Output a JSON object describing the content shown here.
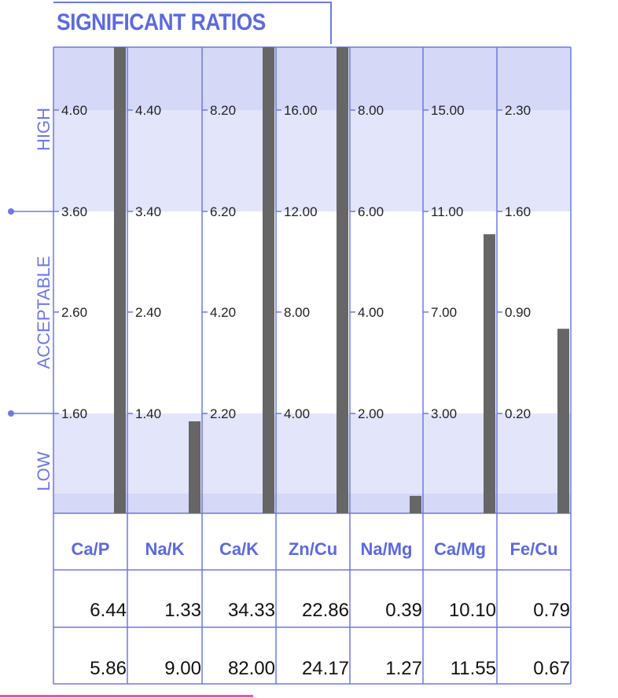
{
  "title": "SIGNIFICANT RATIOS",
  "chart_data": {
    "type": "bar",
    "zones": [
      "HIGH",
      "ACCEPTABLE",
      "LOW"
    ],
    "categories": [
      "Ca/P",
      "Na/K",
      "Ca/K",
      "Zn/Cu",
      "Na/Mg",
      "Ca/Mg",
      "Fe/Cu"
    ],
    "scales": [
      {
        "ticks": [
          "4.60",
          "3.60",
          "2.60",
          "1.60"
        ],
        "tick_values": [
          4.6,
          3.6,
          2.6,
          1.6
        ]
      },
      {
        "ticks": [
          "4.40",
          "3.40",
          "2.40",
          "1.40"
        ],
        "tick_values": [
          4.4,
          3.4,
          2.4,
          1.4
        ]
      },
      {
        "ticks": [
          "8.20",
          "6.20",
          "4.20",
          "2.20"
        ],
        "tick_values": [
          8.2,
          6.2,
          4.2,
          2.2
        ]
      },
      {
        "ticks": [
          "16.00",
          "12.00",
          "8.00",
          "4.00"
        ],
        "tick_values": [
          16,
          12,
          8,
          4
        ]
      },
      {
        "ticks": [
          "8.00",
          "6.00",
          "4.00",
          "2.00"
        ],
        "tick_values": [
          8,
          6,
          4,
          2
        ]
      },
      {
        "ticks": [
          "15.00",
          "11.00",
          "7.00",
          "3.00"
        ],
        "tick_values": [
          15,
          11,
          7,
          3
        ]
      },
      {
        "ticks": [
          "2.30",
          "1.60",
          "0.90",
          "0.20"
        ],
        "tick_values": [
          2.3,
          1.6,
          0.9,
          0.2
        ]
      }
    ],
    "series": [
      {
        "values": [
          6.44,
          1.33,
          34.33,
          22.86,
          0.39,
          10.1,
          0.79
        ],
        "labels": [
          "6.44",
          "1.33",
          "34.33",
          "22.86",
          "0.39",
          "10.10",
          "0.79"
        ]
      },
      {
        "values": [
          5.86,
          9.0,
          82.0,
          24.17,
          1.27,
          11.55,
          0.67
        ],
        "labels": [
          "5.86",
          "9.00",
          "82.00",
          "24.17",
          "1.27",
          "11.55",
          "0.67"
        ]
      }
    ],
    "bar_series_index": 0,
    "colors": {
      "grid": "#6d78e6",
      "high_zone": "#e3e5fb",
      "high_top": "#d5d8f7",
      "low_zone": "#e3e5fb",
      "low_bottom": "#d5d8f7",
      "bar": "#666666"
    }
  }
}
